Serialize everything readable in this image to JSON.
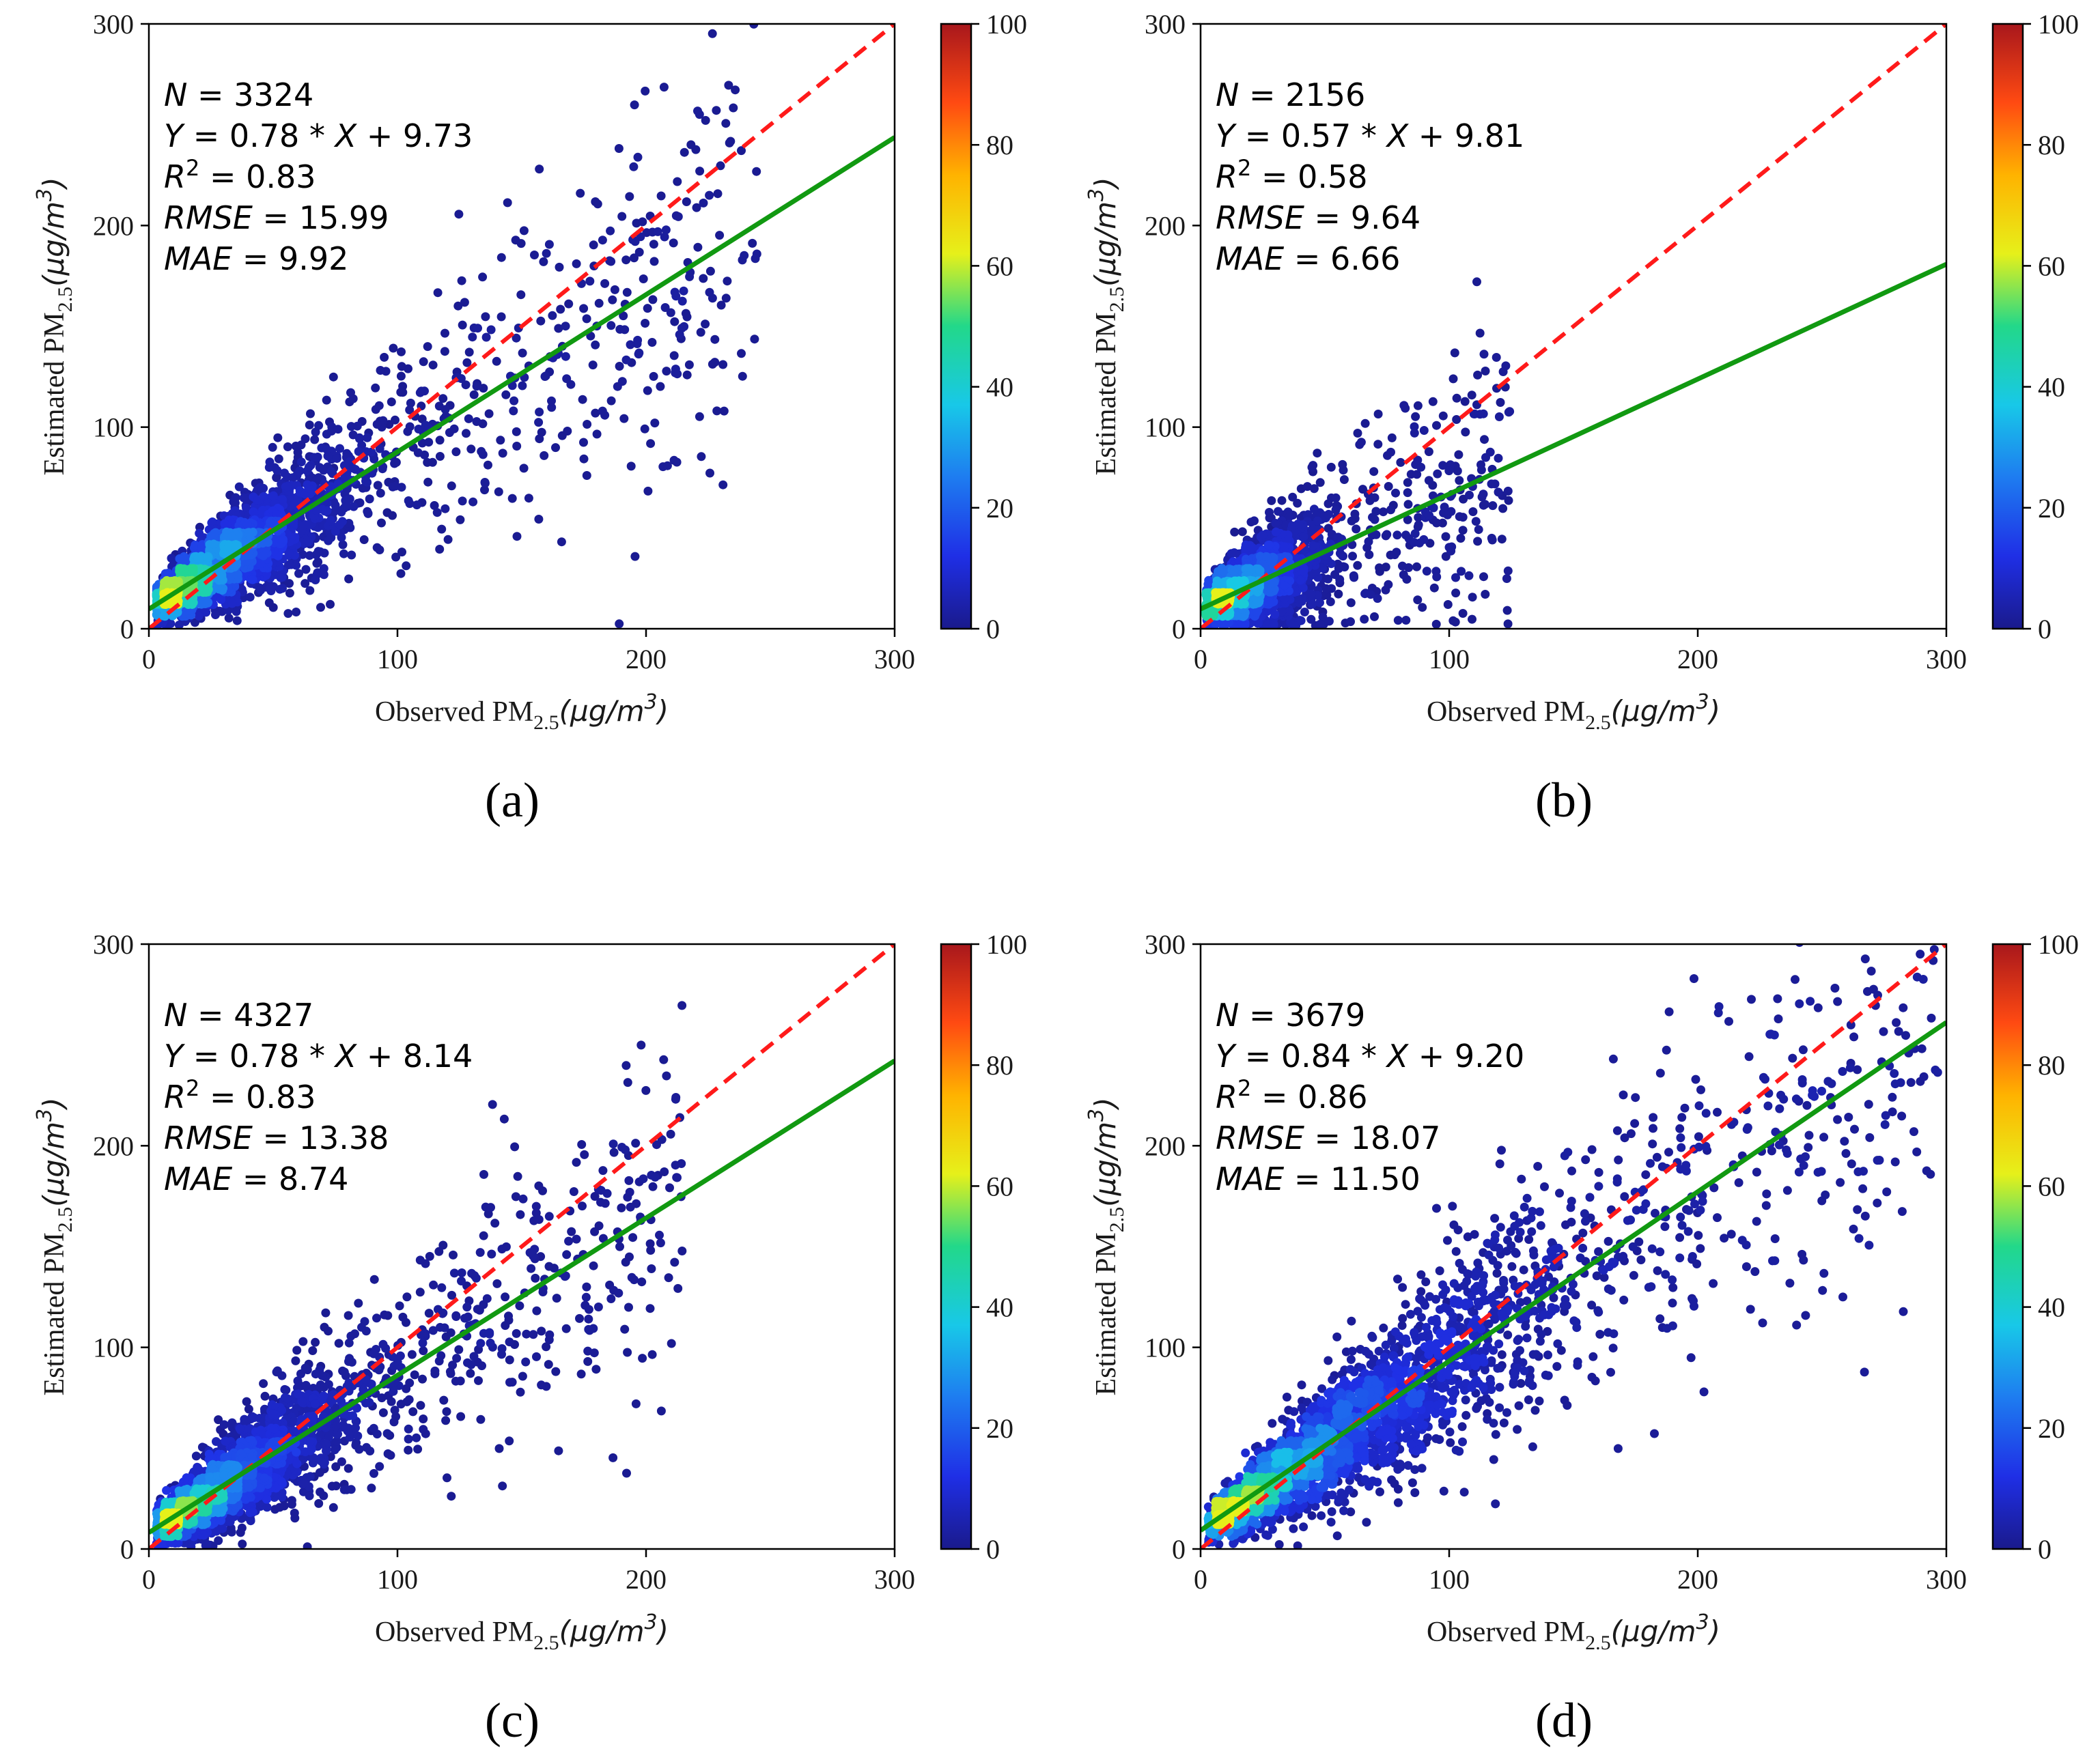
{
  "chart_data": [
    {
      "type": "scatter",
      "label": "(a)",
      "xlabel": "Observed PM2.5(μg/m³)",
      "ylabel": "Estimated PM2.5(μg/m³)",
      "xlim": [
        0,
        300
      ],
      "ylim": [
        0,
        300
      ],
      "xticks": [
        0,
        100,
        200,
        300
      ],
      "yticks": [
        0,
        100,
        200,
        300
      ],
      "stats": {
        "N": "3324",
        "equation_slope": "0.78",
        "equation_intercept": "9.73",
        "R2": "0.83",
        "RMSE": "15.99",
        "MAE": "9.92"
      },
      "one_to_one_line": {
        "x": [
          0,
          300
        ],
        "y": [
          0,
          300
        ],
        "color": "#ff1a1a",
        "style": "dashed"
      },
      "fit_line": {
        "slope": 0.78,
        "intercept": 9.73,
        "x": [
          0,
          300
        ],
        "color": "#119911"
      },
      "colorbar": {
        "min": 0,
        "max": 100,
        "ticks": [
          0,
          20,
          40,
          60,
          80,
          100
        ],
        "colormap": "jet"
      },
      "scatter_summary": {
        "core_range": [
          3,
          90
        ],
        "max_x": 245,
        "spread": 0.22
      }
    },
    {
      "type": "scatter",
      "label": "(b)",
      "xlabel": "Observed PM2.5(μg/m³)",
      "ylabel": "Estimated PM2.5(μg/m³)",
      "xlim": [
        0,
        300
      ],
      "ylim": [
        0,
        300
      ],
      "xticks": [
        0,
        100,
        200,
        300
      ],
      "yticks": [
        0,
        100,
        200,
        300
      ],
      "stats": {
        "N": "2156",
        "equation_slope": "0.57",
        "equation_intercept": "9.81",
        "R2": "0.58",
        "RMSE": "9.64",
        "MAE": "6.66"
      },
      "one_to_one_line": {
        "x": [
          0,
          300
        ],
        "y": [
          0,
          300
        ],
        "color": "#ff1a1a",
        "style": "dashed"
      },
      "fit_line": {
        "slope": 0.57,
        "intercept": 9.81,
        "x": [
          0,
          300
        ],
        "color": "#119911"
      },
      "colorbar": {
        "min": 0,
        "max": 100,
        "ticks": [
          0,
          20,
          40,
          60,
          80,
          100
        ],
        "colormap": "jet"
      },
      "scatter_summary": {
        "core_range": [
          2,
          60
        ],
        "max_x": 125,
        "spread": 0.3
      }
    },
    {
      "type": "scatter",
      "label": "(c)",
      "xlabel": "Observed PM2.5(μg/m³)",
      "ylabel": "Estimated PM2.5(μg/m³)",
      "xlim": [
        0,
        300
      ],
      "ylim": [
        0,
        300
      ],
      "xticks": [
        0,
        100,
        200,
        300
      ],
      "yticks": [
        0,
        100,
        200,
        300
      ],
      "stats": {
        "N": "4327",
        "equation_slope": "0.78",
        "equation_intercept": "8.14",
        "R2": "0.83",
        "RMSE": "13.38",
        "MAE": "8.74"
      },
      "one_to_one_line": {
        "x": [
          0,
          300
        ],
        "y": [
          0,
          300
        ],
        "color": "#ff1a1a",
        "style": "dashed"
      },
      "fit_line": {
        "slope": 0.78,
        "intercept": 8.14,
        "x": [
          0,
          300
        ],
        "color": "#119911"
      },
      "colorbar": {
        "min": 0,
        "max": 100,
        "ticks": [
          0,
          20,
          40,
          60,
          80,
          100
        ],
        "colormap": "jet"
      },
      "scatter_summary": {
        "core_range": [
          3,
          95
        ],
        "max_x": 215,
        "spread": 0.2
      }
    },
    {
      "type": "scatter",
      "label": "(d)",
      "xlabel": "Observed PM2.5(μg/m³)",
      "ylabel": "Estimated PM2.5(μg/m³)",
      "xlim": [
        0,
        300
      ],
      "ylim": [
        0,
        300
      ],
      "xticks": [
        0,
        100,
        200,
        300
      ],
      "yticks": [
        0,
        100,
        200,
        300
      ],
      "stats": {
        "N": "3679",
        "equation_slope": "0.84",
        "equation_intercept": "9.20",
        "R2": "0.86",
        "RMSE": "18.07",
        "MAE": "11.50"
      },
      "one_to_one_line": {
        "x": [
          0,
          300
        ],
        "y": [
          0,
          300
        ],
        "color": "#ff1a1a",
        "style": "dashed"
      },
      "fit_line": {
        "slope": 0.84,
        "intercept": 9.2,
        "x": [
          0,
          300
        ],
        "color": "#119911"
      },
      "colorbar": {
        "min": 0,
        "max": 100,
        "ticks": [
          0,
          20,
          40,
          60,
          80,
          100
        ],
        "colormap": "jet"
      },
      "scatter_summary": {
        "core_range": [
          3,
          170
        ],
        "max_x": 298,
        "spread": 0.2
      }
    }
  ]
}
